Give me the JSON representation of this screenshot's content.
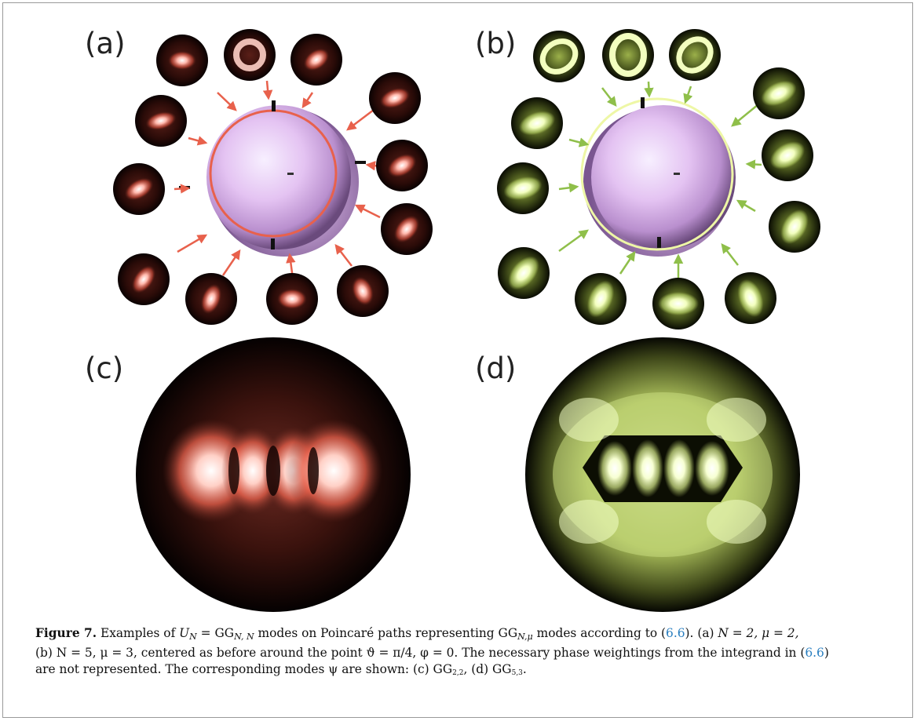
{
  "figure": {
    "panels": [
      {
        "id": "a",
        "label": "(a)",
        "color": "red"
      },
      {
        "id": "b",
        "label": "(b)",
        "color": "yellow"
      },
      {
        "id": "c",
        "label": "(c)",
        "color": "red"
      },
      {
        "id": "d",
        "label": "(d)",
        "color": "yellow"
      }
    ],
    "colors": {
      "red_glow": "#ff9a8c",
      "red_arrow": "#e8614c",
      "green_glow": "#f0ffb0",
      "green_arrow": "#8fbf4a",
      "sphere_light": "#f6eafc",
      "sphere_dark": "#5a3c6e",
      "frame": "#9a9a9a",
      "link": "#2a7fc0"
    }
  },
  "caption": {
    "figure_label": "Figure 7.",
    "text_1": " Examples of ",
    "math_1": "U",
    "math_1_sub": "N",
    "text_2": " = GG",
    "math_2_sub": "N, N",
    "text_3": " modes on Poincaré paths representing GG",
    "math_3_sub": "N,μ",
    "text_4": " modes according to (",
    "ref_1": "6.6",
    "text_5": "). (a) ",
    "line2": "N = 2, μ = 2,",
    "line3_pre": "(b) N = 5, μ = 3, centered as before around the point ϑ = π/4, φ = 0. The necessary phase weightings from the integrand in (",
    "ref_2": "6.6",
    "line3_post": ")",
    "line4_pre": "are not represented. The corresponding modes ψ are shown: (c) GG",
    "sub_c": "2,2",
    "line4_mid": ", (d) GG",
    "sub_d": "5,3",
    "line4_end": "."
  }
}
